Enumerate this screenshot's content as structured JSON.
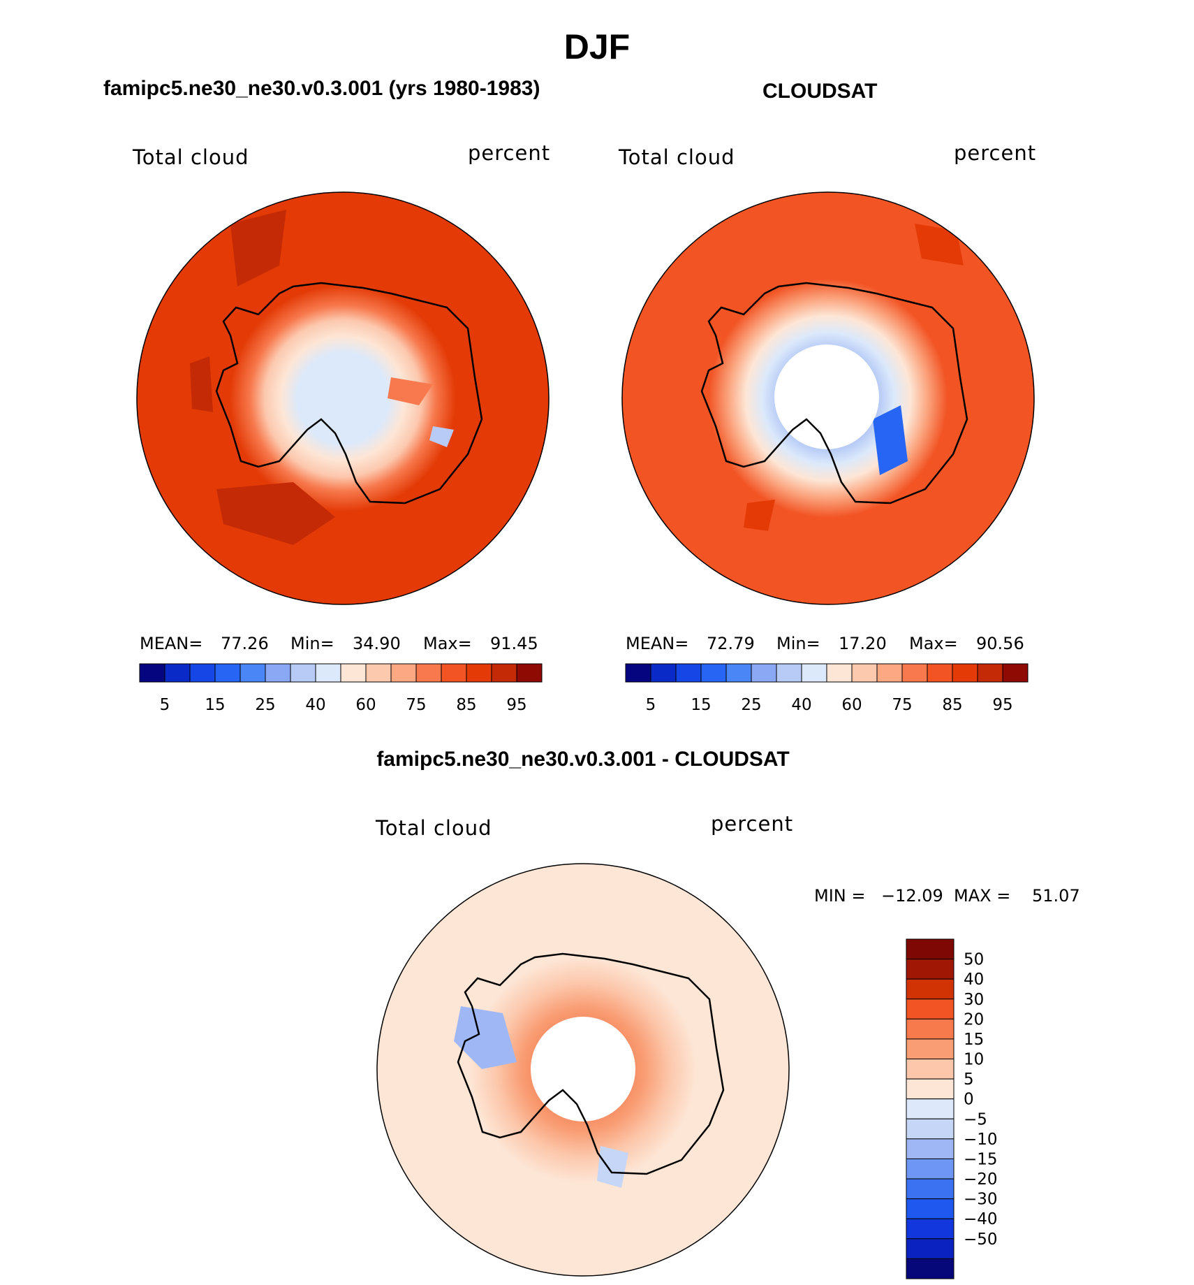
{
  "main_title": "DJF",
  "panels": [
    {
      "title": "famipc5.ne30_ne30.v0.3.001 (yrs 1980-1983)",
      "variable": "Total cloud",
      "units": "percent",
      "stats": {
        "mean_label": "MEAN=",
        "mean": "77.26",
        "min_label": "Min=",
        "min": "34.90",
        "max_label": "Max=",
        "max": "91.45"
      }
    },
    {
      "title": "CLOUDSAT",
      "variable": "Total cloud",
      "units": "percent",
      "stats": {
        "mean_label": "MEAN=",
        "mean": "72.79",
        "min_label": "Min=",
        "min": "17.20",
        "max_label": "Max=",
        "max": "90.56"
      }
    },
    {
      "title": "famipc5.ne30_ne30.v0.3.001 - CLOUDSAT",
      "variable": "Total cloud",
      "units": "percent",
      "stats": {
        "min_label": "MIN  =",
        "min": "−12.09",
        "max_label": "MAX  =",
        "max": "51.07"
      }
    }
  ],
  "colorbar_main": {
    "colors": [
      "#05067f",
      "#0a2ac8",
      "#1646e6",
      "#2766f5",
      "#4a86f6",
      "#8aa8f4",
      "#b7cbf6",
      "#dce9fb",
      "#fde6d6",
      "#fcc8ae",
      "#fba883",
      "#f7794d",
      "#f25424",
      "#e33a06",
      "#c42a05",
      "#8e0a02"
    ],
    "tick_labels": [
      "5",
      "15",
      "25",
      "40",
      "60",
      "75",
      "85",
      "95"
    ]
  },
  "colorbar_diff": {
    "colors": [
      "#06087a",
      "#0a22c0",
      "#1238dd",
      "#1f58ee",
      "#3a72f2",
      "#6e96f4",
      "#9fb7f5",
      "#c6d6f7",
      "#dde9fb",
      "#fde6d6",
      "#fcc7ab",
      "#f99d74",
      "#f77a4d",
      "#f25424",
      "#d23305",
      "#a01704",
      "#7e0803"
    ],
    "tick_labels": [
      "50",
      "40",
      "30",
      "20",
      "15",
      "10",
      "5",
      "0",
      "−5",
      "−10",
      "−15",
      "−20",
      "−30",
      "−40",
      "−50"
    ]
  },
  "chart_data": {
    "type": "map",
    "projection": "south polar stereographic",
    "season": "DJF",
    "field": "Total cloud (percent)",
    "maps": [
      {
        "name": "famipc5.ne30_ne30.v0.3.001 (yrs 1980-1983)",
        "mean": 77.26,
        "min": 34.9,
        "max": 91.45,
        "contour_levels": [
          5,
          10,
          15,
          20,
          25,
          30,
          40,
          50,
          60,
          70,
          75,
          80,
          85,
          90,
          95
        ]
      },
      {
        "name": "CLOUDSAT",
        "mean": 72.79,
        "min": 17.2,
        "max": 90.56,
        "contour_levels": [
          5,
          10,
          15,
          20,
          25,
          30,
          40,
          50,
          60,
          70,
          75,
          80,
          85,
          90,
          95
        ]
      },
      {
        "name": "famipc5.ne30_ne30.v0.3.001 - CLOUDSAT",
        "min": -12.09,
        "max": 51.07,
        "contour_levels": [
          -50,
          -40,
          -30,
          -20,
          -15,
          -10,
          -5,
          0,
          5,
          10,
          15,
          20,
          30,
          40,
          50
        ]
      }
    ]
  }
}
